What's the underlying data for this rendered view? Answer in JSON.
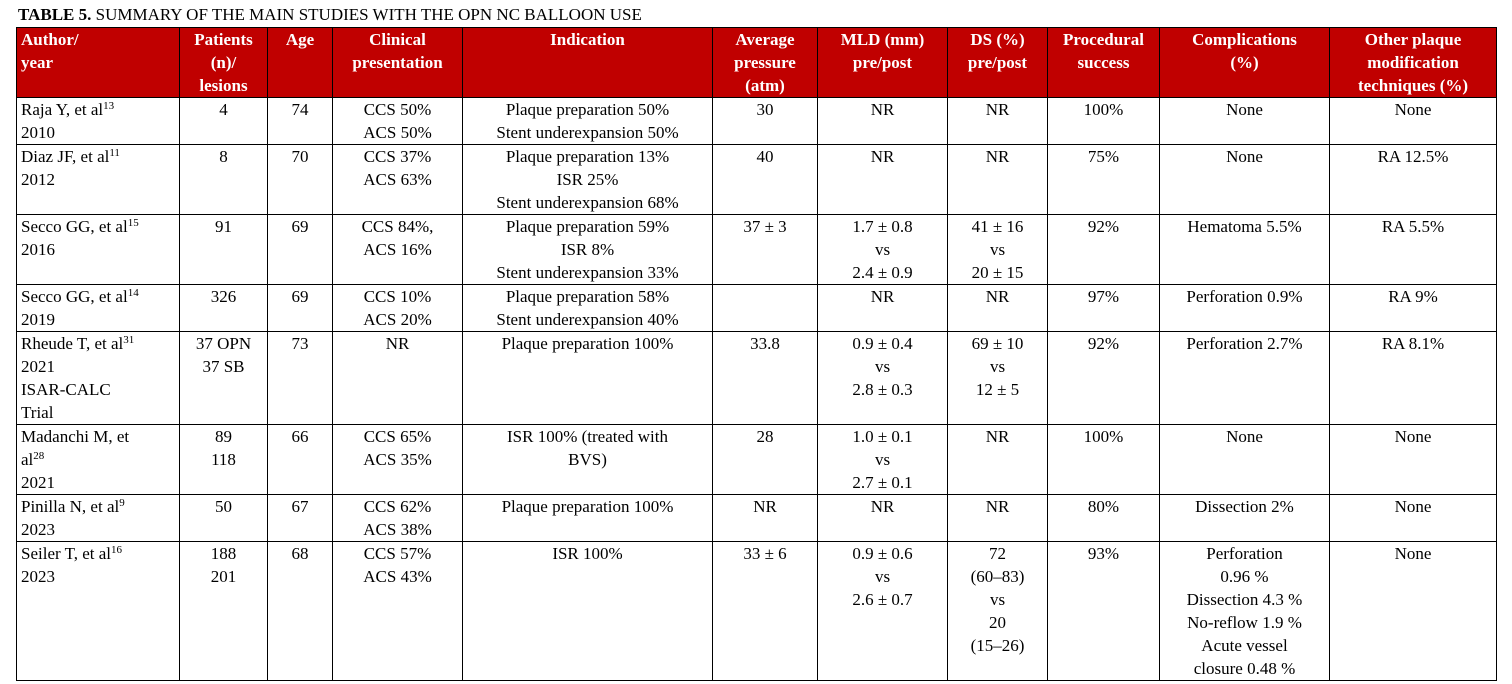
{
  "caption": {
    "bold": "TABLE 5.",
    "rest": " SUMMARY OF THE MAIN STUDIES WITH THE OPN NC BALLOON USE"
  },
  "headers": [
    [
      "Author/",
      "year"
    ],
    [
      "Patients",
      "(n)/",
      "lesions"
    ],
    [
      "Age"
    ],
    [
      "Clinical",
      "presentation"
    ],
    [
      "Indication"
    ],
    [
      "Average",
      "pressure",
      "(atm)"
    ],
    [
      "MLD (mm)",
      "pre/post"
    ],
    [
      "DS (%)",
      "pre/post"
    ],
    [
      "Procedural",
      "success"
    ],
    [
      "Complications",
      "(%)"
    ],
    [
      "Other plaque",
      "modification",
      "techniques (%)"
    ]
  ],
  "rows": [
    {
      "author": [
        [
          "Raja Y, et al",
          "13"
        ],
        [
          "2010",
          ""
        ]
      ],
      "patients": [
        "4"
      ],
      "age": [
        "74"
      ],
      "clinical": [
        "CCS 50%",
        "ACS 50%"
      ],
      "indication": [
        "Plaque preparation 50%",
        "Stent underexpansion 50%"
      ],
      "pressure": [
        "30"
      ],
      "mld": [
        "NR"
      ],
      "ds": [
        "NR"
      ],
      "success": [
        "100%"
      ],
      "complications": [
        "None"
      ],
      "other": [
        "None"
      ]
    },
    {
      "author": [
        [
          "Diaz JF, et al",
          "11"
        ],
        [
          "2012",
          ""
        ]
      ],
      "patients": [
        "8"
      ],
      "age": [
        "70"
      ],
      "clinical": [
        "CCS 37%",
        "ACS 63%"
      ],
      "indication": [
        "Plaque preparation 13%",
        "ISR 25%",
        "Stent underexpansion 68%"
      ],
      "pressure": [
        "40"
      ],
      "mld": [
        "NR"
      ],
      "ds": [
        "NR"
      ],
      "success": [
        "75%"
      ],
      "complications": [
        "None"
      ],
      "other": [
        "RA 12.5%"
      ]
    },
    {
      "author": [
        [
          "Secco GG, et al",
          "15"
        ],
        [
          "2016",
          ""
        ]
      ],
      "patients": [
        "91"
      ],
      "age": [
        "69"
      ],
      "clinical": [
        "CCS 84%,",
        "ACS 16%"
      ],
      "indication": [
        "Plaque preparation 59%",
        "ISR 8%",
        "Stent underexpansion 33%"
      ],
      "pressure": [
        "37 ± 3"
      ],
      "mld": [
        "1.7 ± 0.8",
        "vs",
        "2.4 ± 0.9"
      ],
      "ds": [
        "41 ± 16",
        "vs",
        "20 ± 15"
      ],
      "success": [
        "92%"
      ],
      "complications": [
        "Hematoma 5.5%"
      ],
      "other": [
        "RA 5.5%"
      ]
    },
    {
      "author": [
        [
          "Secco GG, et al",
          "14"
        ],
        [
          "2019",
          ""
        ]
      ],
      "patients": [
        "326"
      ],
      "age": [
        "69"
      ],
      "clinical": [
        "CCS 10%",
        "ACS 20%"
      ],
      "indication": [
        "Plaque preparation 58%",
        "Stent underexpansion 40%"
      ],
      "pressure": [
        ""
      ],
      "mld": [
        "NR"
      ],
      "ds": [
        "NR"
      ],
      "success": [
        "97%"
      ],
      "complications": [
        "Perforation 0.9%"
      ],
      "other": [
        "RA 9%"
      ]
    },
    {
      "author": [
        [
          "Rheude T, et al",
          "31"
        ],
        [
          "2021",
          ""
        ],
        [
          "ISAR-CALC",
          ""
        ],
        [
          "Trial",
          ""
        ]
      ],
      "patients": [
        "37 OPN",
        "37 SB"
      ],
      "age": [
        "73"
      ],
      "clinical": [
        "NR"
      ],
      "indication": [
        "Plaque preparation 100%"
      ],
      "pressure": [
        "33.8"
      ],
      "mld": [
        "0.9 ± 0.4",
        "vs",
        "2.8 ± 0.3"
      ],
      "ds": [
        "69 ± 10",
        "vs",
        "12 ± 5"
      ],
      "success": [
        "92%"
      ],
      "complications": [
        "Perforation 2.7%"
      ],
      "other": [
        "RA 8.1%"
      ]
    },
    {
      "author": [
        [
          "Madanchi M, et",
          ""
        ],
        [
          "al",
          "28"
        ],
        [
          "2021",
          ""
        ]
      ],
      "patients": [
        "89",
        "118"
      ],
      "age": [
        "66"
      ],
      "clinical": [
        "CCS 65%",
        "ACS 35%"
      ],
      "indication": [
        "ISR 100% (treated with",
        "BVS)"
      ],
      "pressure": [
        "28"
      ],
      "mld": [
        "1.0 ± 0.1",
        "vs",
        "2.7 ± 0.1"
      ],
      "ds": [
        "NR"
      ],
      "success": [
        "100%"
      ],
      "complications": [
        "None"
      ],
      "other": [
        "None"
      ]
    },
    {
      "author": [
        [
          "Pinilla N, et al",
          "9"
        ],
        [
          " 2023",
          ""
        ]
      ],
      "patients": [
        "50"
      ],
      "age": [
        "67"
      ],
      "clinical": [
        "CCS 62%",
        "ACS 38%"
      ],
      "indication": [
        "Plaque preparation 100%"
      ],
      "pressure": [
        "NR"
      ],
      "mld": [
        "NR"
      ],
      "ds": [
        "NR"
      ],
      "success": [
        "80%"
      ],
      "complications": [
        "Dissection 2%"
      ],
      "other": [
        "None"
      ]
    },
    {
      "author": [
        [
          "Seiler T, et al",
          "16"
        ],
        [
          "2023",
          ""
        ]
      ],
      "patients": [
        "188",
        "201"
      ],
      "age": [
        "68"
      ],
      "clinical": [
        "CCS 57%",
        "ACS 43%"
      ],
      "indication": [
        "ISR 100%"
      ],
      "pressure": [
        "33 ± 6"
      ],
      "mld": [
        "0.9 ± 0.6",
        "vs",
        "2.6 ± 0.7"
      ],
      "ds": [
        "72",
        "(60–83)",
        "vs",
        "20",
        "(15–26)"
      ],
      "success": [
        "93%"
      ],
      "complications": [
        "Perforation",
        "0.96 %",
        "Dissection 4.3 %",
        "No-reflow 1.9 %",
        "Acute vessel",
        "closure 0.48 %"
      ],
      "other": [
        "None"
      ]
    }
  ]
}
